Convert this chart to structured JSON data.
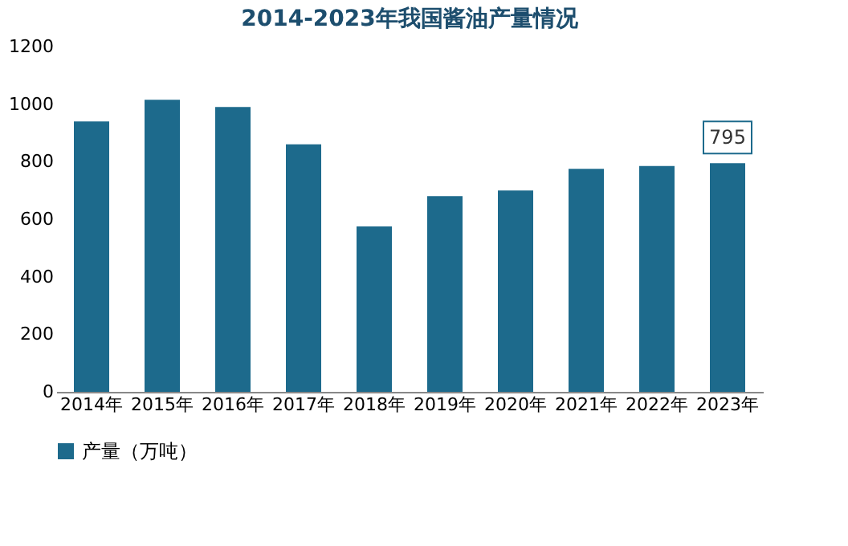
{
  "chart_data": {
    "type": "bar",
    "title": "2014-2023年我国酱油产量情况",
    "categories": [
      "2014年",
      "2015年",
      "2016年",
      "2017年",
      "2018年",
      "2019年",
      "2020年",
      "2021年",
      "2022年",
      "2023年"
    ],
    "series": [
      {
        "name": "产量（万吨）",
        "color": "#1d6a8c",
        "values": [
          940,
          1015,
          990,
          860,
          575,
          680,
          700,
          775,
          785,
          795
        ],
        "value_labels": [
          null,
          null,
          null,
          null,
          null,
          null,
          null,
          null,
          null,
          "795"
        ]
      }
    ],
    "ylim": [
      0,
      1200
    ],
    "yticks": [
      0,
      200,
      400,
      600,
      800,
      1000,
      1200
    ],
    "grid": false,
    "legend": "bottom"
  }
}
